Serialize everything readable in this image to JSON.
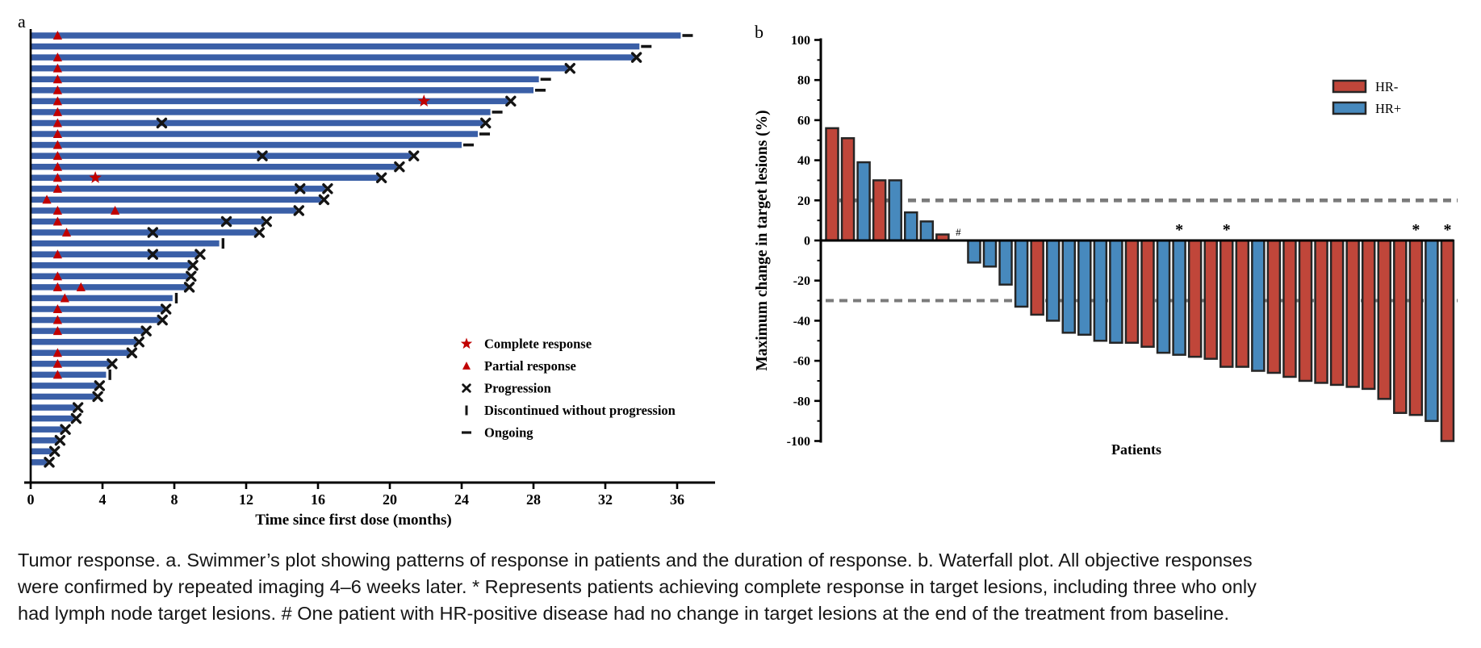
{
  "caption": {
    "text": "Tumor response. a. Swimmer’s plot showing patterns of response in patients and the duration of response. b. Waterfall plot. All objective responses were confirmed by repeated imaging 4–6 weeks later. * Represents patients achieving complete response in target lesions, including three who only had lymph node target lesions. # One patient with HR-positive disease had no change in target lesions at the end of the treatment from baseline."
  },
  "colors": {
    "swimmer_bar": "#3A5FA7",
    "marker_red": "#C00000",
    "marker_black": "#141414",
    "hr_neg": "#C0463A",
    "hr_pos": "#4789BD",
    "bar_stroke": "#262626",
    "dashed_line": "#7B7B7B",
    "axis": "#000000"
  },
  "chart_data": [
    {
      "type": "bar",
      "subtype": "swimmer",
      "panel": "a",
      "xlabel": "Time since first dose (months)",
      "xlim": [
        0,
        38
      ],
      "x_ticks": [
        0,
        4,
        8,
        12,
        16,
        20,
        24,
        28,
        32,
        36
      ],
      "legend_position": "inside-right",
      "legend": [
        {
          "symbol": "star",
          "label": "Complete response"
        },
        {
          "symbol": "triangle",
          "label": "Partial response"
        },
        {
          "symbol": "x",
          "label": "Progression"
        },
        {
          "symbol": "bar",
          "label": "Discontinued without progression"
        },
        {
          "symbol": "dash",
          "label": "Ongoing"
        }
      ],
      "end_marker_meaning": {
        "prog": "Progression",
        "ongoing": "Ongoing",
        "disc": "Discontinued without progression"
      },
      "bars": [
        {
          "duration": 36.2,
          "end": "ongoing",
          "partial_response": [
            1.5
          ],
          "complete_response": [],
          "progression_mid": []
        },
        {
          "duration": 33.9,
          "end": "ongoing",
          "partial_response": [],
          "complete_response": [],
          "progression_mid": []
        },
        {
          "duration": 33.6,
          "end": "prog",
          "partial_response": [
            1.5
          ],
          "complete_response": [],
          "progression_mid": []
        },
        {
          "duration": 29.9,
          "end": "prog",
          "partial_response": [
            1.5
          ],
          "complete_response": [],
          "progression_mid": []
        },
        {
          "duration": 28.3,
          "end": "ongoing",
          "partial_response": [
            1.5
          ],
          "complete_response": [],
          "progression_mid": []
        },
        {
          "duration": 28.0,
          "end": "ongoing",
          "partial_response": [
            1.5
          ],
          "complete_response": [],
          "progression_mid": []
        },
        {
          "duration": 26.6,
          "end": "prog",
          "partial_response": [
            1.5
          ],
          "complete_response": [
            21.9
          ],
          "progression_mid": []
        },
        {
          "duration": 25.6,
          "end": "ongoing",
          "partial_response": [
            1.5
          ],
          "complete_response": [],
          "progression_mid": []
        },
        {
          "duration": 25.2,
          "end": "prog",
          "partial_response": [
            1.5
          ],
          "complete_response": [],
          "progression_mid": [
            7.3
          ]
        },
        {
          "duration": 24.9,
          "end": "ongoing",
          "partial_response": [
            1.5
          ],
          "complete_response": [],
          "progression_mid": []
        },
        {
          "duration": 24.0,
          "end": "ongoing",
          "partial_response": [
            1.5
          ],
          "complete_response": [],
          "progression_mid": []
        },
        {
          "duration": 21.2,
          "end": "prog",
          "partial_response": [
            1.5
          ],
          "complete_response": [],
          "progression_mid": [
            12.9
          ]
        },
        {
          "duration": 20.4,
          "end": "prog",
          "partial_response": [
            1.5
          ],
          "complete_response": [],
          "progression_mid": []
        },
        {
          "duration": 19.4,
          "end": "prog",
          "partial_response": [
            1.5
          ],
          "complete_response": [
            3.6
          ],
          "progression_mid": []
        },
        {
          "duration": 16.4,
          "end": "prog",
          "partial_response": [
            1.5
          ],
          "complete_response": [],
          "progression_mid": [
            15.0
          ]
        },
        {
          "duration": 16.2,
          "end": "prog",
          "partial_response": [
            0.9
          ],
          "complete_response": [],
          "progression_mid": []
        },
        {
          "duration": 14.8,
          "end": "prog",
          "partial_response": [
            1.5,
            4.7
          ],
          "complete_response": [],
          "progression_mid": []
        },
        {
          "duration": 13.0,
          "end": "prog",
          "partial_response": [
            1.5
          ],
          "complete_response": [],
          "progression_mid": [
            10.9
          ]
        },
        {
          "duration": 12.6,
          "end": "prog",
          "partial_response": [
            2.0
          ],
          "complete_response": [],
          "progression_mid": [
            6.8
          ]
        },
        {
          "duration": 10.5,
          "end": "disc",
          "partial_response": [],
          "complete_response": [],
          "progression_mid": []
        },
        {
          "duration": 9.3,
          "end": "prog",
          "partial_response": [
            1.5
          ],
          "complete_response": [],
          "progression_mid": [
            6.8
          ]
        },
        {
          "duration": 8.9,
          "end": "prog",
          "partial_response": [],
          "complete_response": [],
          "progression_mid": []
        },
        {
          "duration": 8.8,
          "end": "prog",
          "partial_response": [
            1.5
          ],
          "complete_response": [],
          "progression_mid": []
        },
        {
          "duration": 8.7,
          "end": "prog",
          "partial_response": [
            1.5,
            2.8
          ],
          "complete_response": [],
          "progression_mid": []
        },
        {
          "duration": 7.9,
          "end": "disc",
          "partial_response": [
            1.9
          ],
          "complete_response": [],
          "progression_mid": []
        },
        {
          "duration": 7.4,
          "end": "prog",
          "partial_response": [
            1.5
          ],
          "complete_response": [],
          "progression_mid": []
        },
        {
          "duration": 7.2,
          "end": "prog",
          "partial_response": [
            1.5
          ],
          "complete_response": [],
          "progression_mid": []
        },
        {
          "duration": 6.3,
          "end": "prog",
          "partial_response": [
            1.5
          ],
          "complete_response": [],
          "progression_mid": []
        },
        {
          "duration": 5.9,
          "end": "prog",
          "partial_response": [],
          "complete_response": [],
          "progression_mid": []
        },
        {
          "duration": 5.5,
          "end": "prog",
          "partial_response": [
            1.5
          ],
          "complete_response": [],
          "progression_mid": []
        },
        {
          "duration": 4.4,
          "end": "prog",
          "partial_response": [
            1.5
          ],
          "complete_response": [],
          "progression_mid": []
        },
        {
          "duration": 4.2,
          "end": "disc",
          "partial_response": [
            1.5
          ],
          "complete_response": [],
          "progression_mid": []
        },
        {
          "duration": 3.7,
          "end": "prog",
          "partial_response": [],
          "complete_response": [],
          "progression_mid": []
        },
        {
          "duration": 3.6,
          "end": "prog",
          "partial_response": [],
          "complete_response": [],
          "progression_mid": []
        },
        {
          "duration": 2.5,
          "end": "prog",
          "partial_response": [],
          "complete_response": [],
          "progression_mid": []
        },
        {
          "duration": 2.4,
          "end": "prog",
          "partial_response": [],
          "complete_response": [],
          "progression_mid": []
        },
        {
          "duration": 1.8,
          "end": "prog",
          "partial_response": [],
          "complete_response": [],
          "progression_mid": []
        },
        {
          "duration": 1.5,
          "end": "prog",
          "partial_response": [],
          "complete_response": [],
          "progression_mid": []
        },
        {
          "duration": 1.2,
          "end": "prog",
          "partial_response": [],
          "complete_response": [],
          "progression_mid": []
        },
        {
          "duration": 0.9,
          "end": "prog",
          "partial_response": [],
          "complete_response": [],
          "progression_mid": []
        }
      ]
    },
    {
      "type": "bar",
      "subtype": "waterfall",
      "panel": "b",
      "ylabel": "Maximum change in target lesions (%)",
      "xlabel": "Patients",
      "ylim": [
        -100,
        100
      ],
      "y_ticks": [
        100,
        80,
        60,
        40,
        20,
        0,
        -20,
        -40,
        -60,
        -80,
        -100
      ],
      "y_minor_step": 10,
      "reference_lines": [
        20,
        -30
      ],
      "legend_position": "upper-right",
      "legend": [
        {
          "label": "HR-",
          "group": "HR-"
        },
        {
          "label": "HR+",
          "group": "HR+"
        }
      ],
      "annotation_symbols": {
        "star": "*",
        "no_change": "#"
      },
      "bars": [
        {
          "value": 56,
          "group": "HR-",
          "annotation": ""
        },
        {
          "value": 51,
          "group": "HR-",
          "annotation": ""
        },
        {
          "value": 39,
          "group": "HR+",
          "annotation": ""
        },
        {
          "value": 30,
          "group": "HR-",
          "annotation": ""
        },
        {
          "value": 30,
          "group": "HR+",
          "annotation": ""
        },
        {
          "value": 14,
          "group": "HR+",
          "annotation": ""
        },
        {
          "value": 9.5,
          "group": "HR+",
          "annotation": ""
        },
        {
          "value": 3,
          "group": "HR-",
          "annotation": ""
        },
        {
          "value": 0,
          "group": "HR+",
          "annotation": "#"
        },
        {
          "value": -11,
          "group": "HR+",
          "annotation": ""
        },
        {
          "value": -13,
          "group": "HR+",
          "annotation": ""
        },
        {
          "value": -22,
          "group": "HR+",
          "annotation": ""
        },
        {
          "value": -33,
          "group": "HR+",
          "annotation": ""
        },
        {
          "value": -37,
          "group": "HR-",
          "annotation": ""
        },
        {
          "value": -40,
          "group": "HR+",
          "annotation": ""
        },
        {
          "value": -46,
          "group": "HR+",
          "annotation": ""
        },
        {
          "value": -47,
          "group": "HR+",
          "annotation": ""
        },
        {
          "value": -50,
          "group": "HR+",
          "annotation": ""
        },
        {
          "value": -51,
          "group": "HR+",
          "annotation": ""
        },
        {
          "value": -51,
          "group": "HR-",
          "annotation": ""
        },
        {
          "value": -53,
          "group": "HR-",
          "annotation": ""
        },
        {
          "value": -56,
          "group": "HR+",
          "annotation": ""
        },
        {
          "value": -57,
          "group": "HR+",
          "annotation": "*"
        },
        {
          "value": -58,
          "group": "HR-",
          "annotation": ""
        },
        {
          "value": -59,
          "group": "HR-",
          "annotation": ""
        },
        {
          "value": -63,
          "group": "HR-",
          "annotation": "*"
        },
        {
          "value": -63,
          "group": "HR-",
          "annotation": ""
        },
        {
          "value": -65,
          "group": "HR+",
          "annotation": ""
        },
        {
          "value": -66,
          "group": "HR-",
          "annotation": ""
        },
        {
          "value": -68,
          "group": "HR-",
          "annotation": ""
        },
        {
          "value": -70,
          "group": "HR-",
          "annotation": ""
        },
        {
          "value": -71,
          "group": "HR-",
          "annotation": ""
        },
        {
          "value": -72,
          "group": "HR-",
          "annotation": ""
        },
        {
          "value": -73,
          "group": "HR-",
          "annotation": ""
        },
        {
          "value": -74,
          "group": "HR-",
          "annotation": ""
        },
        {
          "value": -79,
          "group": "HR-",
          "annotation": ""
        },
        {
          "value": -86,
          "group": "HR-",
          "annotation": ""
        },
        {
          "value": -87,
          "group": "HR-",
          "annotation": "*"
        },
        {
          "value": -90,
          "group": "HR+",
          "annotation": ""
        },
        {
          "value": -100,
          "group": "HR-",
          "annotation": "*"
        }
      ]
    }
  ]
}
